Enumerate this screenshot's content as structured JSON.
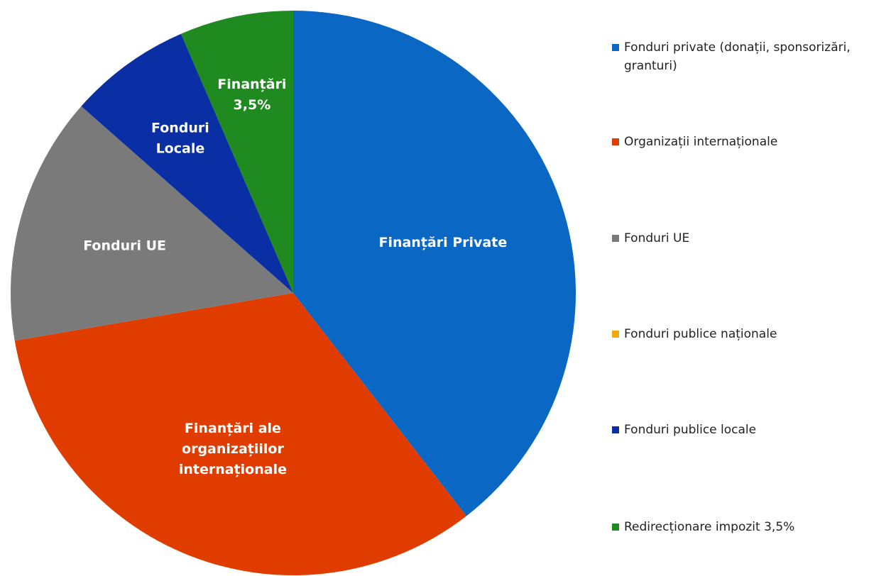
{
  "chart_data": {
    "type": "pie",
    "slices": [
      {
        "label": "Finanțări Private",
        "legend": "Fonduri private (donații, sponsorizări, granturi)",
        "value": 39.5,
        "color": "#0a67c4"
      },
      {
        "label": "Finanțări ale organizațiilor internaționale",
        "legend": "Organizații internaționale",
        "value": 32.8,
        "color": "#e03c00"
      },
      {
        "label": "Fonduri UE",
        "legend": "Fonduri UE",
        "value": 14.2,
        "color": "#7a7a7a"
      },
      {
        "label": "",
        "legend": "Fonduri publice naționale",
        "value": 0,
        "color": "#f2a90c"
      },
      {
        "label": "Fonduri Locale",
        "legend": "Fonduri publice locale",
        "value": 7.0,
        "color": "#0a2ea3"
      },
      {
        "label": "Finanțări 3,5%",
        "legend": "Redirecționare impozit 3,5%",
        "value": 6.5,
        "color": "#1f8a1f"
      }
    ],
    "legend_position": "right"
  }
}
